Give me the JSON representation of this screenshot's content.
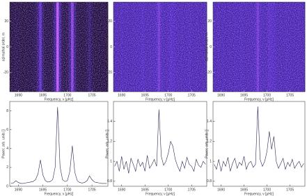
{
  "chart_data": [
    {
      "type": "heatmap",
      "x_label": "Frequency, ν [μHz]",
      "y_label": "azimuthal order, m",
      "x": [
        1688.5,
        1689,
        1689.5,
        1690,
        1690.5,
        1691,
        1691.5,
        1692,
        1692.5,
        1693,
        1693.5,
        1694,
        1694.5,
        1695,
        1695.5,
        1696,
        1696.5,
        1697,
        1697.5,
        1698,
        1698.5,
        1699,
        1699.5,
        1700,
        1700.5,
        1701,
        1701.5,
        1702,
        1702.5,
        1703,
        1703.5,
        1704,
        1704.5,
        1705,
        1705.5,
        1706,
        1706.5,
        1707,
        1707.5,
        1708
      ],
      "values": [
        0.05,
        0.05,
        0.08,
        0.06,
        0.05,
        0.05,
        0.05,
        0.06,
        0.06,
        0.07,
        0.1,
        0.25,
        0.55,
        0.2,
        0.08,
        0.06,
        0.07,
        0.1,
        0.35,
        0.9,
        0.35,
        0.1,
        0.07,
        0.1,
        0.3,
        0.7,
        0.28,
        0.08,
        0.06,
        0.05,
        0.06,
        0.1,
        0.22,
        0.1,
        0.06,
        0.05,
        0.05,
        0.05,
        0.05,
        0.05
      ],
      "xlim": [
        1688.25,
        1708.25
      ],
      "ylim": [
        -35,
        35
      ],
      "xticks": [
        1690,
        1695,
        1700,
        1705
      ],
      "yticks": [
        -20,
        0,
        20
      ],
      "colormap": [
        "#05051e",
        "#3a22b8",
        "#d060ff"
      ]
    },
    {
      "type": "heatmap",
      "x_label": "Frequency, ν [μHz]",
      "y_label": "azimuthal order, m",
      "x": [
        1688.5,
        1689,
        1689.5,
        1690,
        1690.5,
        1691,
        1691.5,
        1692,
        1692.5,
        1693,
        1693.5,
        1694,
        1694.5,
        1695,
        1695.5,
        1696,
        1696.5,
        1697,
        1697.5,
        1698,
        1698.5,
        1699,
        1699.5,
        1700,
        1700.5,
        1701,
        1701.5,
        1702,
        1702.5,
        1703,
        1703.5,
        1704,
        1704.5,
        1705,
        1705.5,
        1706,
        1706.5,
        1707,
        1707.5,
        1708
      ],
      "values": [
        0.45,
        0.46,
        0.44,
        0.47,
        0.45,
        0.46,
        0.44,
        0.45,
        0.46,
        0.45,
        0.47,
        0.46,
        0.5,
        0.46,
        0.45,
        0.46,
        0.45,
        0.47,
        0.5,
        0.62,
        0.5,
        0.46,
        0.45,
        0.47,
        0.52,
        0.5,
        0.47,
        0.46,
        0.45,
        0.46,
        0.45,
        0.46,
        0.48,
        0.46,
        0.45,
        0.46,
        0.45,
        0.44,
        0.45,
        0.46
      ],
      "xlim": [
        1688.25,
        1708.25
      ],
      "ylim": [
        -35,
        35
      ],
      "xticks": [
        1690,
        1695,
        1700,
        1705
      ],
      "yticks": [
        -20,
        0,
        20
      ],
      "colormap": [
        "#05051e",
        "#3a22b8",
        "#d060ff"
      ]
    },
    {
      "type": "heatmap",
      "x_label": "Frequency, ν [μHz]",
      "y_label": "azimuthal order, m",
      "x": [
        1688.5,
        1689,
        1689.5,
        1690,
        1690.5,
        1691,
        1691.5,
        1692,
        1692.5,
        1693,
        1693.5,
        1694,
        1694.5,
        1695,
        1695.5,
        1696,
        1696.5,
        1697,
        1697.5,
        1698,
        1698.5,
        1699,
        1699.5,
        1700,
        1700.5,
        1701,
        1701.5,
        1702,
        1702.5,
        1703,
        1703.5,
        1704,
        1704.5,
        1705,
        1705.5,
        1706,
        1706.5,
        1707,
        1707.5,
        1708
      ],
      "values": [
        0.46,
        0.45,
        0.47,
        0.45,
        0.46,
        0.44,
        0.45,
        0.46,
        0.45,
        0.47,
        0.46,
        0.45,
        0.49,
        0.46,
        0.45,
        0.47,
        0.46,
        0.45,
        0.51,
        0.63,
        0.5,
        0.46,
        0.45,
        0.48,
        0.53,
        0.51,
        0.5,
        0.46,
        0.45,
        0.46,
        0.44,
        0.46,
        0.47,
        0.46,
        0.45,
        0.46,
        0.45,
        0.46,
        0.44,
        0.45
      ],
      "xlim": [
        1688.25,
        1708.25
      ],
      "ylim": [
        -35,
        35
      ],
      "xticks": [
        1690,
        1695,
        1700,
        1705
      ],
      "yticks": [
        -20,
        0,
        20
      ],
      "colormap": [
        "#05051e",
        "#3a22b8",
        "#d060ff"
      ]
    },
    {
      "type": "line",
      "x_label": "Frequency, ν [μHz]",
      "y_label": "Power, arb. units []",
      "color": "#2a2a55",
      "x": [
        1688.5,
        1689,
        1689.5,
        1690,
        1690.5,
        1691,
        1691.5,
        1692,
        1692.5,
        1693,
        1693.5,
        1694,
        1694.5,
        1695,
        1695.5,
        1696,
        1696.5,
        1697,
        1697.5,
        1698,
        1698.5,
        1699,
        1699.5,
        1700,
        1700.5,
        1701,
        1701.5,
        1702,
        1702.5,
        1703,
        1703.5,
        1704,
        1704.5,
        1705,
        1705.5,
        1706,
        1706.5,
        1707,
        1707.5,
        1708
      ],
      "values": [
        0.3,
        0.35,
        0.6,
        0.4,
        0.3,
        0.3,
        0.35,
        0.4,
        0.45,
        0.5,
        0.7,
        1.3,
        2.8,
        1.2,
        0.6,
        0.45,
        0.5,
        0.7,
        2.0,
        8.4,
        2.1,
        0.7,
        0.5,
        0.6,
        1.6,
        4.3,
        1.5,
        0.6,
        0.4,
        0.35,
        0.4,
        0.6,
        1.1,
        0.7,
        0.45,
        0.4,
        0.35,
        0.3,
        0.3,
        0.3
      ],
      "xlim": [
        1688.25,
        1708.25
      ],
      "ylim": [
        0,
        9
      ],
      "xticks": [
        1690,
        1695,
        1700,
        1705
      ],
      "yticks": [
        0,
        2,
        4,
        6,
        8
      ]
    },
    {
      "type": "line",
      "x_label": "Frequency, ν [μHz]",
      "y_label": "Power, arb. units []",
      "color": "#2a2a55",
      "x": [
        1688.5,
        1689,
        1689.5,
        1690,
        1690.5,
        1691,
        1691.5,
        1692,
        1692.5,
        1693,
        1693.5,
        1694,
        1694.5,
        1695,
        1695.5,
        1696,
        1696.5,
        1697,
        1697.5,
        1698,
        1698.5,
        1699,
        1699.5,
        1700,
        1700.5,
        1701,
        1701.5,
        1702,
        1702.5,
        1703,
        1703.5,
        1704,
        1704.5,
        1705,
        1705.5,
        1706,
        1706.5,
        1707,
        1707.5,
        1708
      ],
      "values": [
        0.95,
        1.0,
        0.9,
        1.05,
        0.92,
        1.0,
        0.88,
        1.03,
        0.97,
        0.9,
        1.02,
        0.95,
        0.99,
        0.9,
        1.06,
        0.93,
        0.97,
        1.02,
        0.95,
        1.52,
        1.05,
        0.96,
        1.0,
        1.08,
        1.2,
        1.15,
        1.02,
        0.95,
        0.9,
        1.0,
        0.93,
        1.04,
        0.97,
        0.95,
        0.9,
        1.02,
        0.96,
        0.94,
        1.0,
        0.97
      ],
      "xlim": [
        1688.25,
        1708.25
      ],
      "ylim": [
        0.75,
        1.6
      ],
      "xticks": [
        1690,
        1695,
        1700,
        1705
      ],
      "yticks": [
        0.8,
        1.0,
        1.2,
        1.4
      ]
    },
    {
      "type": "line",
      "x_label": "Frequency, ν [μHz]",
      "y_label": "Power, arb. units []",
      "color": "#2a2a55",
      "x": [
        1688.5,
        1689,
        1689.5,
        1690,
        1690.5,
        1691,
        1691.5,
        1692,
        1692.5,
        1693,
        1693.5,
        1694,
        1694.5,
        1695,
        1695.5,
        1696,
        1696.5,
        1697,
        1697.5,
        1698,
        1698.5,
        1699,
        1699.5,
        1700,
        1700.5,
        1701,
        1701.5,
        1702,
        1702.5,
        1703,
        1703.5,
        1704,
        1704.5,
        1705,
        1705.5,
        1706,
        1706.5,
        1707,
        1707.5,
        1708
      ],
      "values": [
        0.97,
        0.92,
        1.02,
        0.9,
        1.0,
        0.95,
        1.04,
        0.9,
        0.98,
        1.03,
        0.93,
        0.99,
        0.96,
        1.05,
        0.92,
        0.98,
        1.0,
        0.94,
        0.97,
        1.55,
        1.02,
        0.95,
        1.0,
        1.1,
        1.3,
        1.12,
        1.25,
        1.0,
        0.93,
        0.98,
        1.03,
        0.92,
        0.99,
        0.95,
        1.02,
        0.93,
        0.97,
        1.0,
        0.94,
        0.98
      ],
      "xlim": [
        1688.25,
        1708.25
      ],
      "ylim": [
        0.75,
        1.6
      ],
      "xticks": [
        1690,
        1695,
        1700,
        1705
      ],
      "yticks": [
        0.8,
        1.0,
        1.2,
        1.4
      ]
    }
  ]
}
